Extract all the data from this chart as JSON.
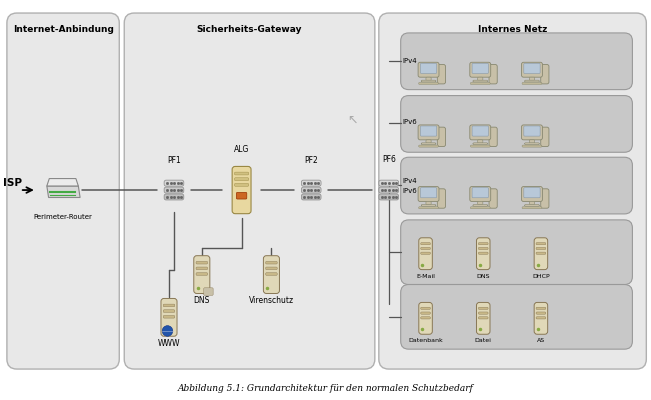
{
  "title": "Abbildung 5.1: Grundarchitektur für den normalen Schutzbedarf",
  "zone1_label": "Internet-Anbindung",
  "zone2_label": "Sicherheits-Gateway",
  "zone3_label": "Internes Netz",
  "bg_color": "#ffffff",
  "zone_bg": "#e8e8e8",
  "zone_border": "#aaaaaa",
  "group_bg": "#c0c0c0",
  "group_border": "#999999",
  "isp_label": "ISP",
  "perimeter_label": "Perimeter-Router",
  "pf1_label": "PF1",
  "alg_label": "ALG",
  "pf2_label": "PF2",
  "pf6_label": "PF6",
  "dns_label": "DNS",
  "virenschutz_label": "Virenschutz",
  "www_label": "WWW",
  "ipv4_label": "IPv4",
  "ipv6_label": "IPv6",
  "ipv4_ipv6_label": "IPv4\nIPv6",
  "server_labels_row1": [
    "E-Mail",
    "DNS",
    "DHCP"
  ],
  "server_labels_row2": [
    "Datenbank",
    "Datei",
    "AS"
  ],
  "workstation_color": "#d8d0c0",
  "server_color": "#e0d8b8",
  "router_color": "#d8d8d8",
  "alg_color": "#e8d8a0",
  "firewall_color": "#c8c8c8"
}
